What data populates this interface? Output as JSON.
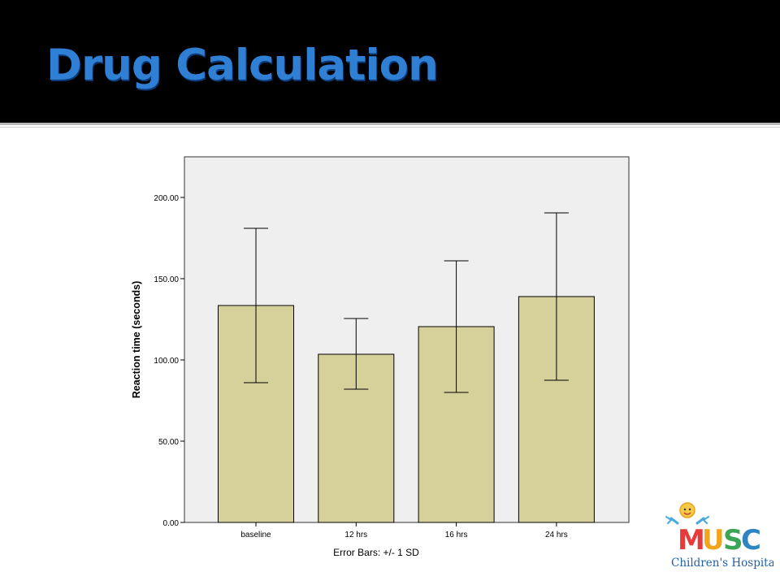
{
  "slide": {
    "title": "Drug Calculation"
  },
  "colors": {
    "title": "#2f7fd4",
    "bar_fill": "#d6d09a",
    "plot_background": "#efefef"
  },
  "chart_data": {
    "type": "bar",
    "categories": [
      "baseline",
      "12 hrs",
      "16 hrs",
      "24 hrs"
    ],
    "values": [
      133.5,
      103.5,
      120.5,
      139
    ],
    "error_bars": {
      "lower": [
        86,
        82,
        80,
        87.5
      ],
      "upper": [
        181,
        125.5,
        161,
        190.5
      ]
    },
    "ylabel": "Reaction time (seconds)",
    "xlabel": "",
    "ylim": [
      0,
      225
    ],
    "yticks": [
      0,
      50,
      100,
      150,
      200
    ],
    "ytick_labels": [
      "0.00",
      "50.00",
      "100.00",
      "150.00",
      "200.00"
    ],
    "footnote": "Error Bars: +/- 1 SD",
    "grid": false
  },
  "logo": {
    "name": "MUSC",
    "subtitle": "Children's Hospital"
  }
}
